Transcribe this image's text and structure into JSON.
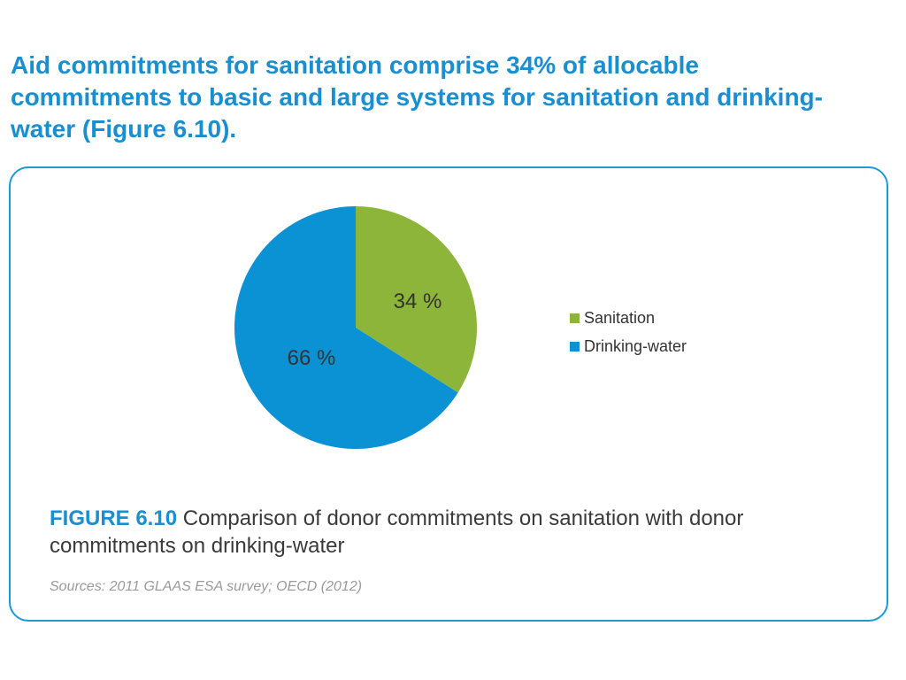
{
  "headline": "Aid commitments for sanitation comprise 34% of allocable commitments to basic and large systems for sanitation and drinking-water (Figure 6.10).",
  "caption": {
    "figure_label": "FIGURE 6.10",
    "text": " Comparison of donor commitments on sanitation with donor commitments on drinking-water"
  },
  "sources": "Sources: 2011 GLAAS ESA survey; OECD (2012)",
  "chart_data": {
    "type": "pie",
    "title": "",
    "slices": [
      {
        "name": "Sanitation",
        "value": 34,
        "label": "34 %",
        "color": "#8db53a"
      },
      {
        "name": "Drinking-water",
        "value": 66,
        "label": "66 %",
        "color": "#0a92d4"
      }
    ],
    "legend": {
      "placement": "right",
      "entries": [
        "Sanitation",
        "Drinking-water"
      ]
    }
  }
}
